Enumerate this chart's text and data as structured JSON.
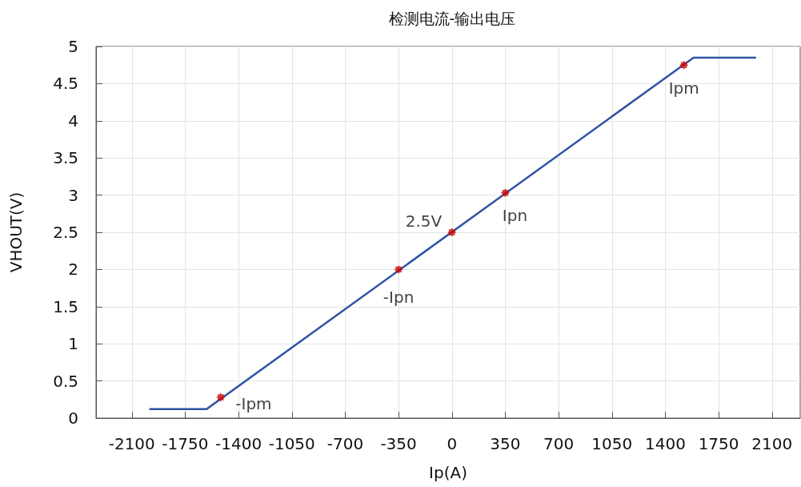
{
  "chart_data": {
    "type": "line",
    "title": "检测电流-输出电压",
    "xlabel": "Ip(A)",
    "ylabel": "VHOUT(V)",
    "xlim": [
      -2335,
      2285
    ],
    "xticks": [
      -2100,
      -1750,
      -1400,
      -1050,
      -700,
      -350,
      0,
      350,
      700,
      1050,
      1400,
      1750,
      2100
    ],
    "ylim": [
      0,
      5
    ],
    "yticks": [
      0,
      0.5,
      1,
      1.5,
      2,
      2.5,
      3,
      3.5,
      4,
      4.5,
      5
    ],
    "grid": true,
    "series": [
      {
        "color": "#2f55a4",
        "x": [
          -1980,
          -1610,
          1585,
          1990
        ],
        "values": [
          0.12,
          0.12,
          4.85,
          4.85
        ],
        "marker": "none",
        "line_style": "solid"
      },
      {
        "type": "scatter",
        "color": "#cc0000",
        "x": [
          -1517,
          -350,
          0,
          350,
          1522
        ],
        "values": [
          0.28,
          2.0,
          2.5,
          3.03,
          4.75
        ],
        "marker": "star",
        "value_labels": [
          "-Ipm",
          "-Ipn",
          "2.5V",
          "Ipn",
          "Ipm"
        ]
      }
    ]
  }
}
